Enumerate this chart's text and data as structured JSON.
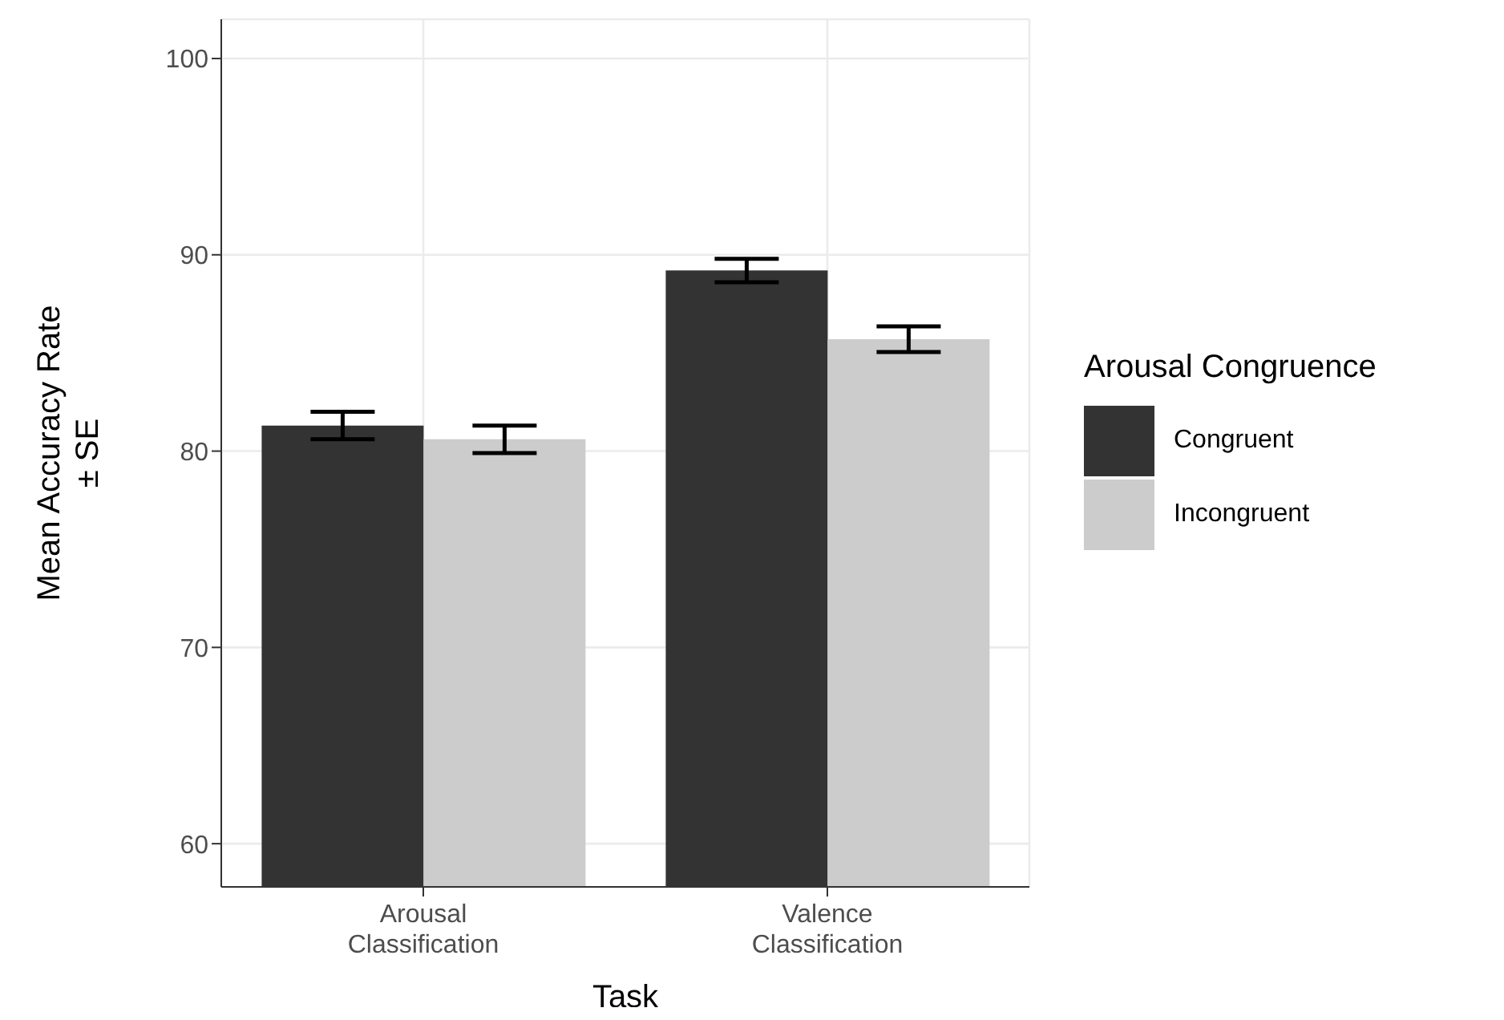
{
  "chart_data": {
    "type": "bar",
    "xlabel": "Task",
    "ylabel": "Mean Accuracy Rate\n± SE",
    "legend_title": "Arousal Congruence",
    "categories": [
      "Arousal Classification",
      "Valence Classification"
    ],
    "series": [
      {
        "name": "Congruent",
        "color": "#333333",
        "values": [
          81.3,
          89.2
        ],
        "errors": [
          0.7,
          0.6
        ]
      },
      {
        "name": "Incongruent",
        "color": "#cccccc",
        "values": [
          80.6,
          85.7
        ],
        "errors": [
          0.7,
          0.65
        ]
      }
    ],
    "ylim": [
      57.8,
      102
    ],
    "yticks": [
      60,
      70,
      80,
      90,
      100
    ],
    "grid": true,
    "legend": "right"
  }
}
